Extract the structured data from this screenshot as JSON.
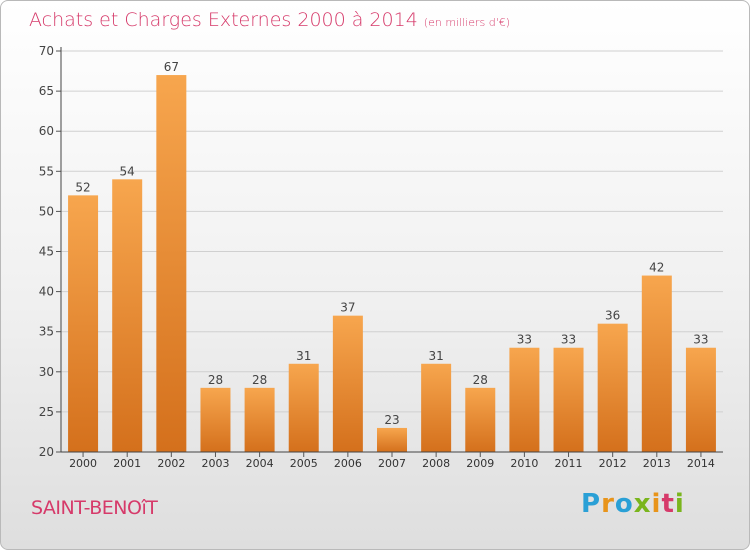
{
  "title": "Achats et Charges Externes 2000 à 2014",
  "subtitle": "(en milliers d'€)",
  "city": "SAINT-BENOîT",
  "logo": {
    "text": "Proxiti",
    "colors": [
      "#2aa0d6",
      "#e8941a",
      "#2aa0d6",
      "#7ab51d",
      "#e8941a",
      "#d63a6a",
      "#7ab51d"
    ]
  },
  "colors": {
    "bar_top": "#f7a64e",
    "bar_bottom": "#d4701c",
    "title": "#d63a6a",
    "grid": "#d0d0d0"
  },
  "chart_data": {
    "type": "bar",
    "categories": [
      "2000",
      "2001",
      "2002",
      "2003",
      "2004",
      "2005",
      "2006",
      "2007",
      "2008",
      "2009",
      "2010",
      "2011",
      "2012",
      "2013",
      "2014"
    ],
    "values": [
      52,
      54,
      67,
      28,
      28,
      31,
      37,
      23,
      31,
      28,
      33,
      33,
      36,
      42,
      33
    ],
    "ylim": [
      20,
      70
    ],
    "yticks": [
      20,
      25,
      30,
      35,
      40,
      45,
      50,
      55,
      60,
      65,
      70
    ],
    "grid": true,
    "xlabel": "",
    "ylabel": ""
  }
}
